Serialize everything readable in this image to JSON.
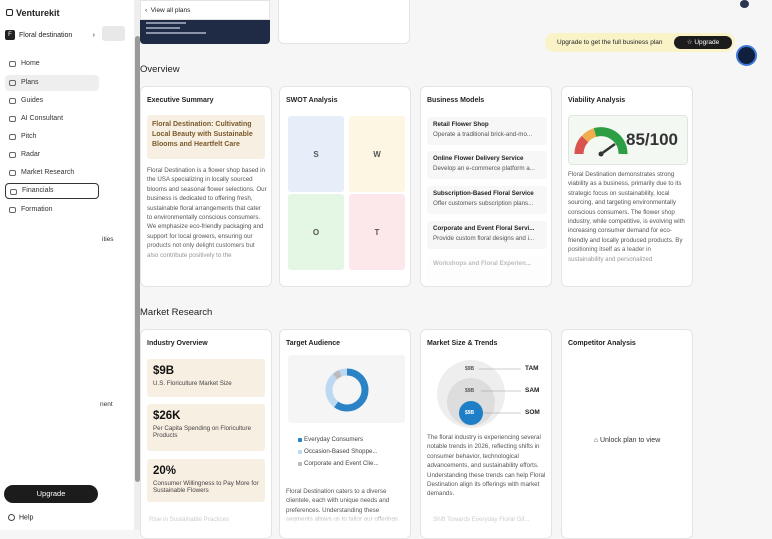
{
  "sidebar": {
    "brand": "Venturekit",
    "project": "Floral destination",
    "nav": [
      "Home",
      "Plans",
      "Guides",
      "AI Consultant",
      "Pitch",
      "Radar",
      "Market Research",
      "Financials",
      "Formation"
    ],
    "fragments": [
      "ities",
      "nent"
    ],
    "upgrade": "Upgrade",
    "help": "Help"
  },
  "top": {
    "view_all": "View all plans",
    "banner": "Upgrade to get the full business plan",
    "banner_button": "Upgrade"
  },
  "sections": {
    "overview": "Overview",
    "market_research": "Market Research"
  },
  "executive_summary": {
    "title": "Executive Summary",
    "headline": "Floral Destination: Cultivating Local Beauty with Sustainable Blooms and Heartfelt Care",
    "body": "Floral Destination is a flower shop based in the USA specializing in locally sourced blooms and seasonal flower selections. Our business is dedicated to offering fresh, sustainable floral arrangements that cater to environmentally conscious consumers. We emphasize eco-friendly packaging and support for local growers, ensuring our products not only delight customers but also contribute positively to the"
  },
  "swot": {
    "title": "SWOT Analysis",
    "letters": [
      "S",
      "W",
      "O",
      "T"
    ]
  },
  "business_models": {
    "title": "Business Models",
    "items": [
      {
        "name": "Retail Flower Shop",
        "desc": "Operate a traditional brick-and-mo..."
      },
      {
        "name": "Online Flower Delivery Service",
        "desc": "Develop an e-commerce platform a..."
      },
      {
        "name": "Subscription-Based Floral Service",
        "desc": "Offer customers subscription plans..."
      },
      {
        "name": "Corporate and Event Floral Servi...",
        "desc": "Provide custom floral designs and i..."
      },
      {
        "name": "Workshops and Floral Experien...",
        "desc": ""
      }
    ]
  },
  "viability": {
    "title": "Viability Analysis",
    "score": "85/100",
    "body": "Floral Destination demonstrates strong viability as a business, primarily due to its strategic focus on sustainability, local sourcing, and targeting environmentally conscious consumers. The flower shop industry, while competitive, is evolving with increasing consumer demand for eco-friendly and locally produced products. By positioning itself as a leader in sustainability and personalized"
  },
  "industry_overview": {
    "title": "Industry Overview",
    "stats": [
      {
        "value": "$9B",
        "label": "U.S. Floriculture Market Size"
      },
      {
        "value": "$26K",
        "label": "Per Capita Spending on Floriculture Products"
      },
      {
        "value": "20%",
        "label": "Consumer Willingness to Pay More for Sustainable Flowers"
      }
    ],
    "faded": "Rise in Sustainable Practices"
  },
  "target_audience": {
    "title": "Target Audience",
    "legend": [
      "Everyday Consumers",
      "Occasion-Based Shoppe...",
      "Corporate and Event Clie..."
    ],
    "body": "Floral Destination caters to a diverse clientele, each with unique needs and preferences. Understanding these segments allows us to tailor our offerings"
  },
  "market_size": {
    "title": "Market Size & Trends",
    "circles": [
      "$9B",
      "$9B",
      "$9B"
    ],
    "labels": [
      "TAM",
      "SAM",
      "SOM"
    ],
    "body": "The floral industry is experiencing several notable trends in 2026, reflecting shifts in consumer behavior, technological advancements, and sustainability efforts. Understanding these trends can help Floral Destination align its offerings with market demands.",
    "faded": "Shift Towards Everyday Floral Gif..."
  },
  "competitor": {
    "title": "Competitor Analysis",
    "locked": "Unlock plan to view"
  }
}
